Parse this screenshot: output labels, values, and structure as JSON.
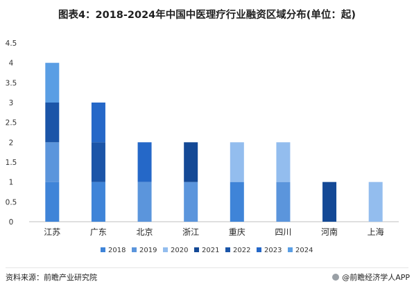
{
  "title": "图表4：2018-2024年中国中医理疗行业融资区域分布(单位：起)",
  "footer": {
    "source": "资料来源：前瞻产业研究院",
    "brand": "@前瞻经济学人APP"
  },
  "chart_data": {
    "type": "bar",
    "stacked": true,
    "categories": [
      "江苏",
      "广东",
      "北京",
      "浙江",
      "重庆",
      "四川",
      "河南",
      "上海"
    ],
    "ylim": [
      0,
      4.5
    ],
    "yticks": [
      "0",
      "0.5",
      "1",
      "1.5",
      "2",
      "2.5",
      "3",
      "3.5",
      "4",
      "4.5"
    ],
    "legend_position": "bottom",
    "grid": false,
    "series": [
      {
        "name": "2018",
        "color": "#3f84d8",
        "values": [
          1,
          1,
          0,
          0,
          1,
          0,
          0,
          0
        ]
      },
      {
        "name": "2019",
        "color": "#5b95dc",
        "values": [
          1,
          0,
          1,
          1,
          0,
          1,
          0,
          0
        ]
      },
      {
        "name": "2020",
        "color": "#93bdee",
        "values": [
          0,
          0,
          0,
          0,
          1,
          1,
          0,
          1
        ]
      },
      {
        "name": "2021",
        "color": "#144996",
        "values": [
          0,
          0,
          0,
          1,
          0,
          0,
          1,
          0
        ]
      },
      {
        "name": "2022",
        "color": "#1b55a8",
        "values": [
          1,
          1,
          0,
          0,
          0,
          0,
          0,
          0
        ]
      },
      {
        "name": "2023",
        "color": "#2568c8",
        "values": [
          0,
          1,
          1,
          0,
          0,
          0,
          0,
          0
        ]
      },
      {
        "name": "2024",
        "color": "#5a9ee4",
        "values": [
          1,
          0,
          0,
          0,
          0,
          0,
          0,
          0
        ]
      }
    ]
  }
}
